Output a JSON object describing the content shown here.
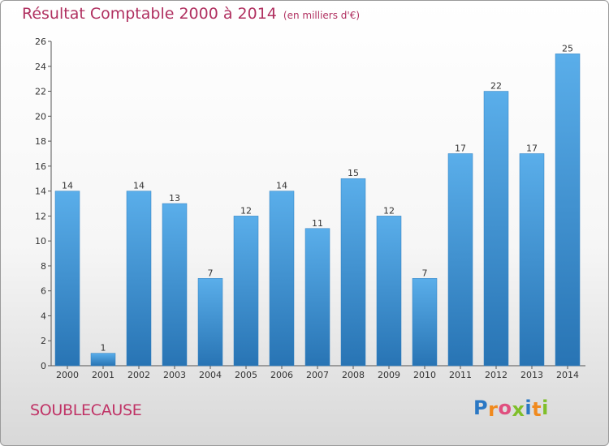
{
  "header": {
    "title": "Résultat Comptable 2000 à 2014",
    "subtitle": "(en milliers d'€)"
  },
  "footer": {
    "commune": "SOUBLECAUSE",
    "brand": {
      "letters": [
        "P",
        "r",
        "o",
        "x",
        "i",
        "t",
        "i"
      ],
      "colors": [
        "#2b78c4",
        "#f08a1e",
        "#e04f7f",
        "#7fbf2a",
        "#2b78c4",
        "#f08a1e",
        "#7fbf2a"
      ]
    }
  },
  "colors": {
    "bar_top": "#5aaeea",
    "bar_bottom": "#2874b4",
    "title": "#b03060",
    "commune": "#c03366"
  },
  "chart_data": {
    "type": "bar",
    "title": "Résultat Comptable 2000 à 2014",
    "subtitle": "(en milliers d'€)",
    "categories": [
      "2000",
      "2001",
      "2002",
      "2003",
      "2004",
      "2005",
      "2006",
      "2007",
      "2008",
      "2009",
      "2010",
      "2011",
      "2012",
      "2013",
      "2014"
    ],
    "values": [
      14,
      1,
      14,
      13,
      7,
      12,
      14,
      11,
      15,
      12,
      7,
      17,
      22,
      17,
      25
    ],
    "data_labels": [
      "14",
      "1",
      "14",
      "13",
      "7",
      "12",
      "14",
      "11",
      "15",
      "12",
      "7",
      "17",
      "22",
      "17",
      "25"
    ],
    "ylim": [
      0,
      26
    ],
    "yticks": [
      0,
      2,
      4,
      6,
      8,
      10,
      12,
      14,
      16,
      18,
      20,
      22,
      24,
      26
    ],
    "grid": false,
    "legend": "none"
  }
}
